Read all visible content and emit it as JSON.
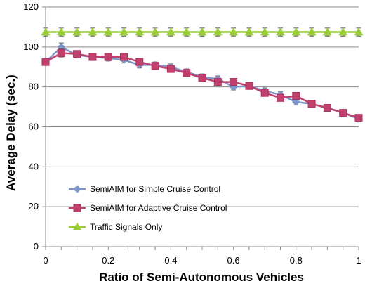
{
  "chart_data": {
    "type": "line",
    "xlabel": "Ratio of Semi-Autonomous Vehicles",
    "ylabel": "Average Delay (sec.)",
    "xlim": [
      0,
      1
    ],
    "ylim": [
      0,
      120
    ],
    "xticks": [
      0,
      0.2,
      0.4,
      0.6,
      0.8,
      1
    ],
    "xtick_labels": [
      "0",
      "0.2",
      "0.4",
      "0.6",
      "0.8",
      "1"
    ],
    "yticks": [
      0,
      20,
      40,
      60,
      80,
      100,
      120
    ],
    "ytick_labels": [
      "0",
      "20",
      "40",
      "60",
      "80",
      "100",
      "120"
    ],
    "grid": "horizontal",
    "legend_position": "bottom-left",
    "x": [
      0,
      0.05,
      0.1,
      0.15,
      0.2,
      0.25,
      0.3,
      0.35,
      0.4,
      0.45,
      0.5,
      0.55,
      0.6,
      0.65,
      0.7,
      0.75,
      0.8,
      0.85,
      0.9,
      0.95,
      1.0
    ],
    "series": [
      {
        "name": "SemiAIM for Simple Cruise Control",
        "color": "#7f96c8",
        "marker": "diamond",
        "values": [
          92.5,
          100,
          96,
          95,
          94.5,
          93.5,
          91,
          91,
          90,
          87.5,
          85,
          84,
          80,
          80.5,
          78,
          76,
          72.5,
          71.5,
          69.5,
          67,
          64
        ],
        "error": [
          1.5,
          2,
          1.5,
          1.5,
          1.5,
          1.5,
          1.5,
          1.5,
          1.5,
          1.5,
          1.5,
          1.5,
          1.5,
          1.5,
          1.5,
          1.5,
          1.5,
          1.5,
          1.5,
          1.5,
          1.5
        ]
      },
      {
        "name": "SemiAIM for Adaptive Cruise Control",
        "color": "#c0406e",
        "marker": "square",
        "values": [
          92.5,
          97,
          96.5,
          95,
          95,
          95,
          92.5,
          90.5,
          89,
          87,
          84.5,
          82.5,
          82.5,
          80.5,
          77,
          74.5,
          75.5,
          71.5,
          69.5,
          67,
          64.5
        ],
        "error": [
          1.5,
          2,
          1.5,
          1.5,
          1.5,
          1.5,
          1.5,
          1.5,
          1.5,
          1.5,
          1.5,
          1.5,
          1.5,
          1.5,
          1.5,
          1.5,
          1.5,
          1.5,
          1.5,
          1.5,
          1.5
        ]
      },
      {
        "name": "Traffic Signals Only",
        "color": "#9acd32",
        "marker": "triangle",
        "values": [
          107.5,
          107.5,
          107.5,
          107.5,
          107.5,
          107.5,
          107.5,
          107.5,
          107.5,
          107.5,
          107.5,
          107.5,
          107.5,
          107.5,
          107.5,
          107.5,
          107.5,
          107.5,
          107.5,
          107.5,
          107.5
        ],
        "error": [
          2,
          2,
          2,
          2,
          2,
          2,
          2,
          2,
          2,
          2,
          2,
          2,
          2,
          2,
          2,
          2,
          2,
          2,
          2,
          2,
          2
        ]
      }
    ]
  }
}
